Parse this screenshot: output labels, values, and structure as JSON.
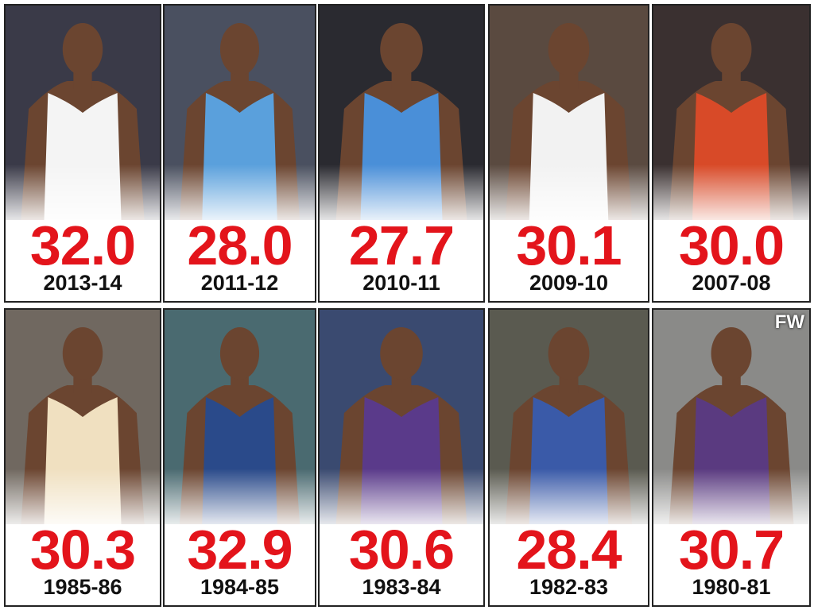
{
  "cards": [
    {
      "value": "32.0",
      "season": "2013-14"
    },
    {
      "value": "28.0",
      "season": "2011-12"
    },
    {
      "value": "27.7",
      "season": "2010-11"
    },
    {
      "value": "30.1",
      "season": "2009-10"
    },
    {
      "value": "30.0",
      "season": "2007-08"
    },
    {
      "value": "30.3",
      "season": "1985-86"
    },
    {
      "value": "32.9",
      "season": "1984-85"
    },
    {
      "value": "30.6",
      "season": "1983-84"
    },
    {
      "value": "28.4",
      "season": "1982-83"
    },
    {
      "value": "30.7",
      "season": "1980-81"
    }
  ],
  "watermark": "FW"
}
